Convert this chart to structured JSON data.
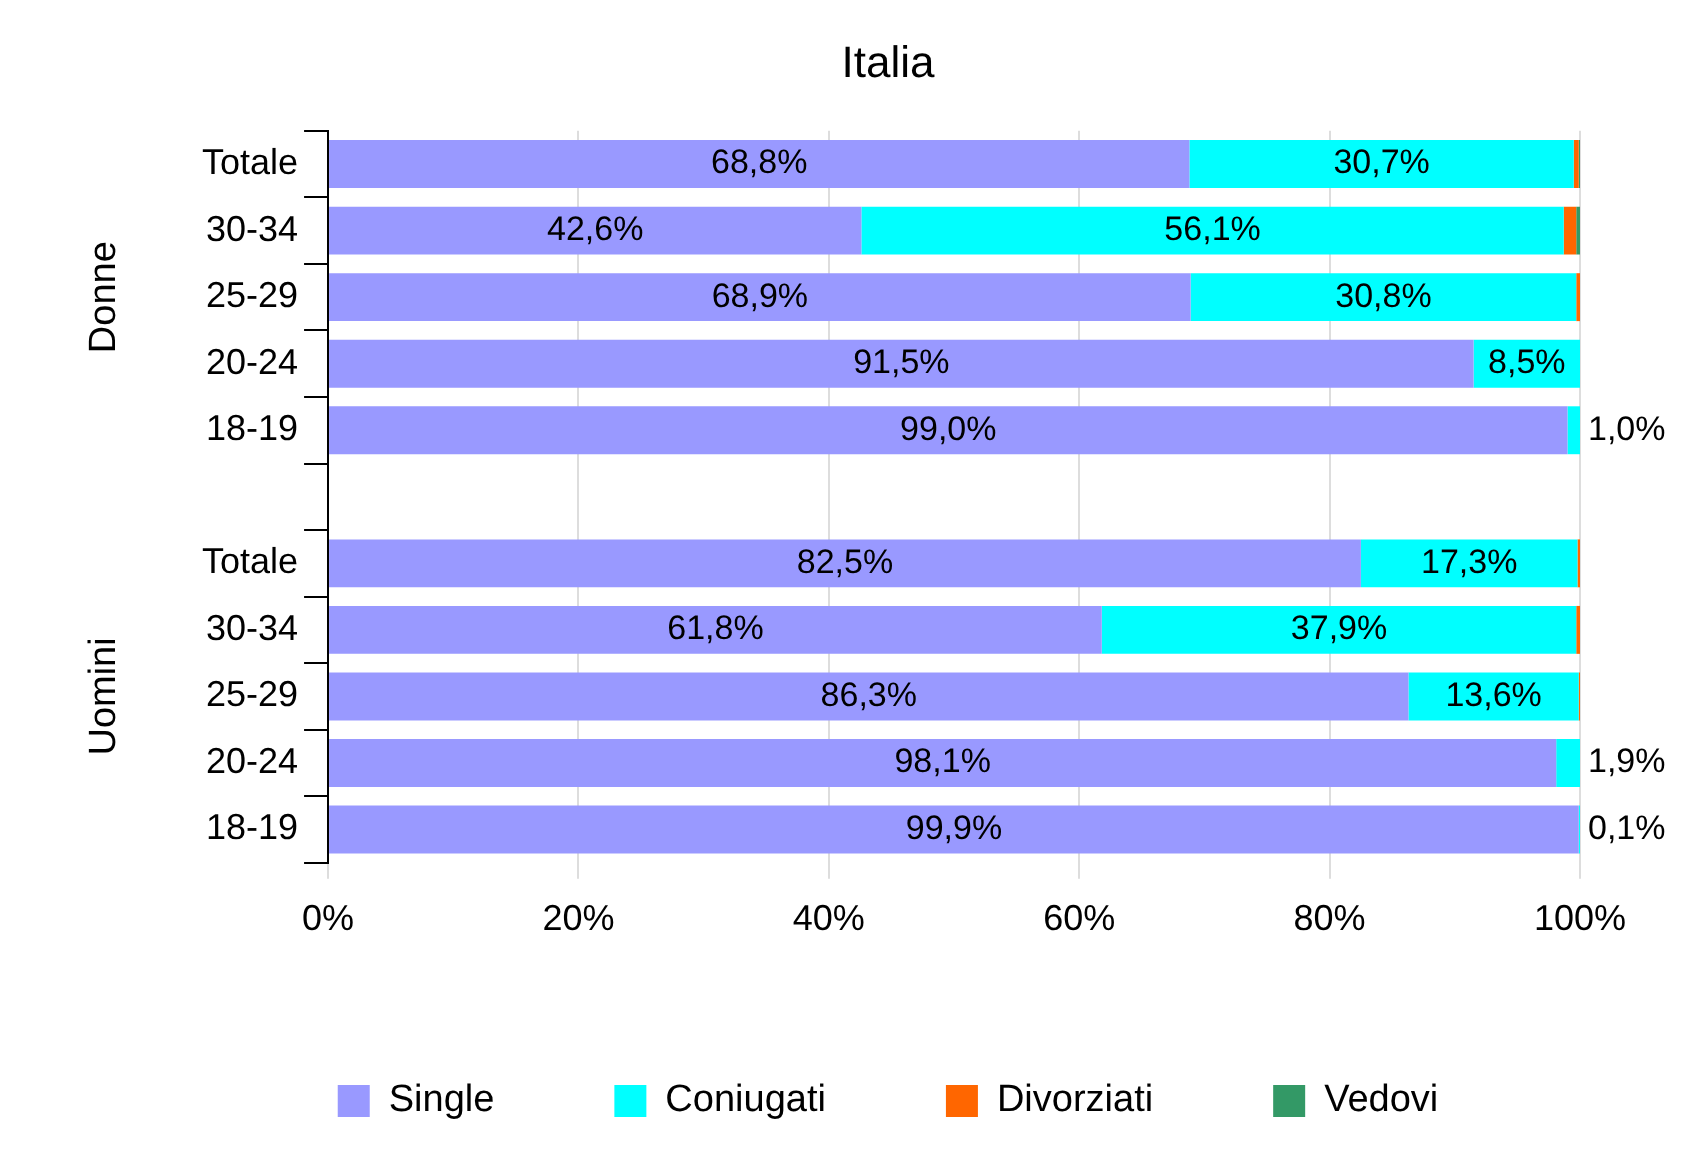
{
  "chart_data": {
    "type": "bar",
    "orientation": "horizontal",
    "stacked": true,
    "title": "Italia",
    "categories": [
      "Totale",
      "30-34",
      "25-29",
      "20-24",
      "18-19",
      null,
      "Totale",
      "30-34",
      "25-29",
      "20-24",
      "18-19"
    ],
    "series": [
      {
        "name": "Single",
        "color": "#9999ff",
        "values": [
          68.8,
          42.6,
          68.9,
          91.5,
          99.0,
          null,
          82.5,
          61.8,
          86.3,
          98.1,
          99.9
        ],
        "value_labels": [
          "68,8%",
          "42,6%",
          "68,9%",
          "91,5%",
          "99,0%",
          null,
          "82,5%",
          "61,8%",
          "86,3%",
          "98,1%",
          "99,9%"
        ]
      },
      {
        "name": "Coniugati",
        "color": "#00ffff",
        "values": [
          30.7,
          56.1,
          30.8,
          8.5,
          1.0,
          null,
          17.3,
          37.9,
          13.6,
          1.9,
          0.1
        ],
        "value_labels": [
          "30,7%",
          "56,1%",
          "30,8%",
          "8,5%",
          "1,0%",
          null,
          "17,3%",
          "37,9%",
          "13,6%",
          "1,9%",
          "0,1%"
        ]
      },
      {
        "name": "Divorziati",
        "color": "#ff6600",
        "values": [
          0.4,
          1.0,
          0.3,
          0,
          0,
          null,
          0.2,
          0.3,
          0.1,
          0,
          0
        ]
      },
      {
        "name": "Vedovi",
        "color": "#339966",
        "values": [
          0.1,
          0.3,
          0,
          0,
          0,
          null,
          0,
          0,
          0,
          0,
          0
        ]
      }
    ],
    "annotations": [
      "Donne",
      "Uomini"
    ],
    "xlim": [
      0,
      100
    ],
    "xticks": [
      {
        "value": 0,
        "label": "0%"
      },
      {
        "value": 20,
        "label": "20%"
      },
      {
        "value": 40,
        "label": "40%"
      },
      {
        "value": 60,
        "label": "60%"
      },
      {
        "value": 80,
        "label": "80%"
      },
      {
        "value": 100,
        "label": "100%"
      }
    ],
    "grid": "x",
    "legend": "bottom"
  }
}
